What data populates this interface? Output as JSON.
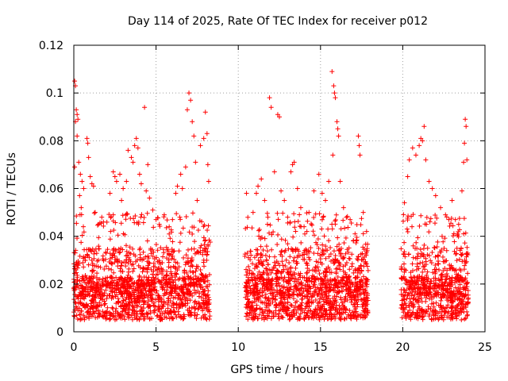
{
  "chart_data": {
    "type": "scatter",
    "title": "Day 114 of 2025, Rate Of TEC Index for receiver p012",
    "xlabel": "GPS time / hours",
    "ylabel": "ROTI / TECUs",
    "xlim": [
      0,
      25
    ],
    "ylim": [
      0,
      0.12
    ],
    "xticks": [
      0,
      5,
      10,
      15,
      20,
      25
    ],
    "yticks": [
      0,
      0.02,
      0.04,
      0.06,
      0.08,
      0.1,
      0.12
    ],
    "xtick_labels": [
      "0",
      "5",
      "10",
      "15",
      "20",
      "25"
    ],
    "ytick_labels": [
      "0",
      "0.02",
      "0.04",
      "0.06",
      "0.08",
      "0.1",
      "0.12"
    ],
    "grid": true,
    "marker": "+",
    "color": "#ff0000",
    "coverage_hours": [
      [
        0,
        8.3
      ],
      [
        10.4,
        17.9
      ],
      [
        19.9,
        24.0
      ]
    ],
    "series": [
      {
        "name": "ROTI",
        "points": [
          [
            0.05,
            0.105
          ],
          [
            0.1,
            0.103
          ],
          [
            0.15,
            0.093
          ],
          [
            0.2,
            0.091
          ],
          [
            0.25,
            0.089
          ],
          [
            0.1,
            0.088
          ],
          [
            0.2,
            0.082
          ],
          [
            0.3,
            0.071
          ],
          [
            0.05,
            0.069
          ],
          [
            0.4,
            0.066
          ],
          [
            0.5,
            0.063
          ],
          [
            0.6,
            0.06
          ],
          [
            0.35,
            0.057
          ],
          [
            0.45,
            0.052
          ],
          [
            0.8,
            0.081
          ],
          [
            0.85,
            0.079
          ],
          [
            0.9,
            0.073
          ],
          [
            1.0,
            0.065
          ],
          [
            1.1,
            0.062
          ],
          [
            1.2,
            0.061
          ],
          [
            1.3,
            0.05
          ],
          [
            1.5,
            0.045
          ],
          [
            1.7,
            0.048
          ],
          [
            1.8,
            0.046
          ],
          [
            2.2,
            0.058
          ],
          [
            2.4,
            0.067
          ],
          [
            2.5,
            0.065
          ],
          [
            2.6,
            0.063
          ],
          [
            2.8,
            0.066
          ],
          [
            2.9,
            0.055
          ],
          [
            3.0,
            0.06
          ],
          [
            3.2,
            0.063
          ],
          [
            3.3,
            0.076
          ],
          [
            3.5,
            0.073
          ],
          [
            3.6,
            0.071
          ],
          [
            3.7,
            0.078
          ],
          [
            3.8,
            0.081
          ],
          [
            3.9,
            0.077
          ],
          [
            4.0,
            0.066
          ],
          [
            4.1,
            0.062
          ],
          [
            4.3,
            0.094
          ],
          [
            4.4,
            0.059
          ],
          [
            4.5,
            0.07
          ],
          [
            4.6,
            0.056
          ],
          [
            4.8,
            0.051
          ],
          [
            5.0,
            0.047
          ],
          [
            5.2,
            0.045
          ],
          [
            5.5,
            0.049
          ],
          [
            5.8,
            0.044
          ],
          [
            6.0,
            0.047
          ],
          [
            6.2,
            0.058
          ],
          [
            6.3,
            0.061
          ],
          [
            6.5,
            0.066
          ],
          [
            6.6,
            0.06
          ],
          [
            6.8,
            0.069
          ],
          [
            6.9,
            0.093
          ],
          [
            7.0,
            0.1
          ],
          [
            7.1,
            0.097
          ],
          [
            7.2,
            0.088
          ],
          [
            7.3,
            0.082
          ],
          [
            7.4,
            0.071
          ],
          [
            7.5,
            0.055
          ],
          [
            7.7,
            0.078
          ],
          [
            7.9,
            0.081
          ],
          [
            8.0,
            0.092
          ],
          [
            8.1,
            0.083
          ],
          [
            8.2,
            0.063
          ],
          [
            8.15,
            0.07
          ],
          [
            10.5,
            0.058
          ],
          [
            10.9,
            0.05
          ],
          [
            11.1,
            0.058
          ],
          [
            11.2,
            0.061
          ],
          [
            11.4,
            0.064
          ],
          [
            11.6,
            0.055
          ],
          [
            11.8,
            0.048
          ],
          [
            11.9,
            0.098
          ],
          [
            12.0,
            0.094
          ],
          [
            12.2,
            0.067
          ],
          [
            12.4,
            0.091
          ],
          [
            12.5,
            0.09
          ],
          [
            12.6,
            0.059
          ],
          [
            12.8,
            0.055
          ],
          [
            13.0,
            0.048
          ],
          [
            13.2,
            0.067
          ],
          [
            13.3,
            0.07
          ],
          [
            13.4,
            0.071
          ],
          [
            13.6,
            0.06
          ],
          [
            13.8,
            0.052
          ],
          [
            14.0,
            0.044
          ],
          [
            14.3,
            0.05
          ],
          [
            14.6,
            0.059
          ],
          [
            14.9,
            0.066
          ],
          [
            15.1,
            0.058
          ],
          [
            15.3,
            0.055
          ],
          [
            15.5,
            0.063
          ],
          [
            15.7,
            0.109
          ],
          [
            15.8,
            0.103
          ],
          [
            15.85,
            0.1
          ],
          [
            15.9,
            0.098
          ],
          [
            16.0,
            0.088
          ],
          [
            16.05,
            0.085
          ],
          [
            16.1,
            0.082
          ],
          [
            15.75,
            0.074
          ],
          [
            16.2,
            0.063
          ],
          [
            16.4,
            0.052
          ],
          [
            16.8,
            0.047
          ],
          [
            17.1,
            0.041
          ],
          [
            17.3,
            0.082
          ],
          [
            17.35,
            0.078
          ],
          [
            17.4,
            0.074
          ],
          [
            17.6,
            0.05
          ],
          [
            17.8,
            0.042
          ],
          [
            20.1,
            0.054
          ],
          [
            20.3,
            0.065
          ],
          [
            20.4,
            0.072
          ],
          [
            20.6,
            0.077
          ],
          [
            20.8,
            0.074
          ],
          [
            21.0,
            0.078
          ],
          [
            21.1,
            0.081
          ],
          [
            21.2,
            0.08
          ],
          [
            21.3,
            0.086
          ],
          [
            21.4,
            0.072
          ],
          [
            21.6,
            0.063
          ],
          [
            21.8,
            0.06
          ],
          [
            22.0,
            0.057
          ],
          [
            22.3,
            0.052
          ],
          [
            22.6,
            0.049
          ],
          [
            22.8,
            0.047
          ],
          [
            23.0,
            0.055
          ],
          [
            23.2,
            0.047
          ],
          [
            23.4,
            0.045
          ],
          [
            23.6,
            0.059
          ],
          [
            23.7,
            0.071
          ],
          [
            23.75,
            0.079
          ],
          [
            23.8,
            0.089
          ],
          [
            23.85,
            0.086
          ],
          [
            23.9,
            0.072
          ],
          [
            23.7,
            0.041
          ]
        ]
      }
    ]
  }
}
